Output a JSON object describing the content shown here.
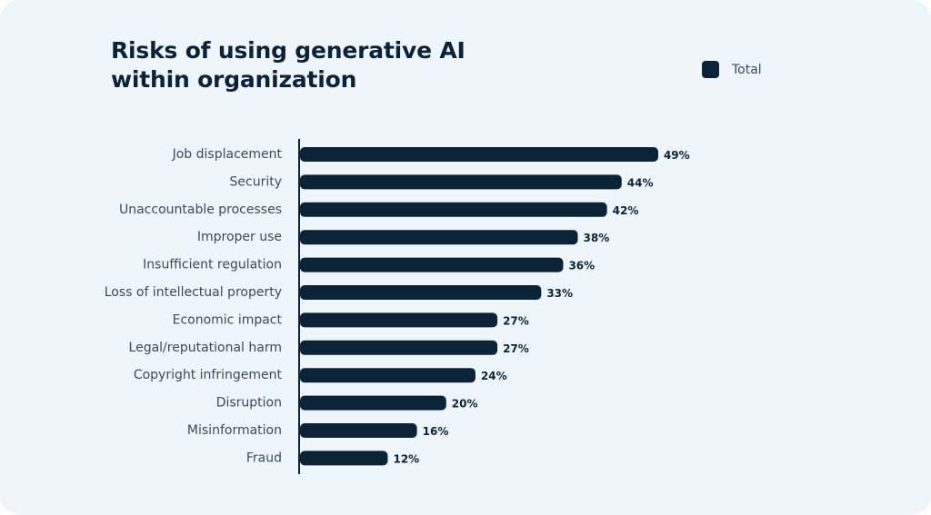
{
  "chart_data": {
    "type": "bar",
    "orientation": "horizontal",
    "title": "Risks of using generative AI within organization",
    "legend_position": "top-right",
    "grid": false,
    "categories": [
      "Job displacement",
      "Security",
      "Unaccountable processes",
      "Improper use",
      "Insufficient regulation",
      "Loss of intellectual property",
      "Economic impact",
      "Legal/reputational harm",
      "Copyright infringement",
      "Disruption",
      "Misinformation",
      "Fraud"
    ],
    "series": [
      {
        "name": "Total",
        "values": [
          49,
          44,
          42,
          38,
          36,
          33,
          27,
          27,
          24,
          20,
          16,
          12
        ],
        "labels": [
          "49%",
          "44%",
          "42%",
          "38%",
          "36%",
          "33%",
          "27%",
          "27%",
          "24%",
          "20%",
          "16%",
          "12%"
        ]
      }
    ],
    "xlim": [
      0,
      100
    ],
    "bar_color": "#0c2236"
  },
  "colors": {
    "background": "#eef6fb",
    "bar": "#0c2236",
    "text": "#3c4a57"
  }
}
